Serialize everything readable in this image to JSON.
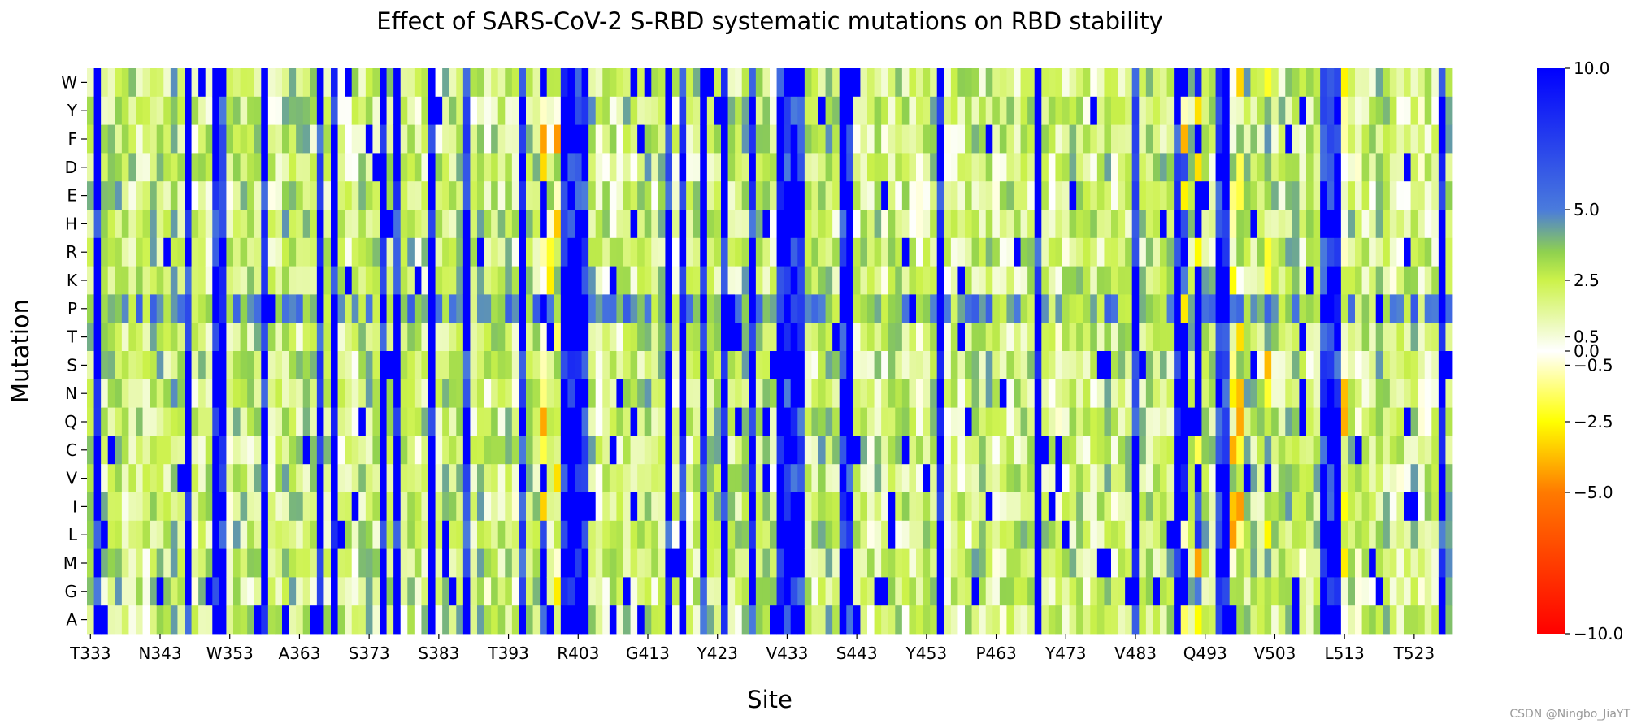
{
  "chart_data": {
    "type": "heatmap",
    "title": "Effect of SARS-CoV-2 S-RBD systematic mutations on RBD stability",
    "xlabel": "Site",
    "ylabel": "Mutation",
    "site_start": 333,
    "site_end": 528,
    "x_tick_labels": [
      "T333",
      "N343",
      "W353",
      "A363",
      "S373",
      "S383",
      "T393",
      "R403",
      "G413",
      "Y423",
      "V433",
      "S443",
      "Y453",
      "P463",
      "Y473",
      "V483",
      "Q493",
      "V503",
      "L513",
      "T523"
    ],
    "rows": [
      "W",
      "Y",
      "F",
      "D",
      "E",
      "H",
      "R",
      "K",
      "P",
      "T",
      "S",
      "N",
      "Q",
      "C",
      "V",
      "I",
      "L",
      "M",
      "G",
      "A"
    ],
    "colorbar": {
      "vmin": -10.0,
      "vmax": 10.0,
      "tick_values": [
        10.0,
        5.0,
        2.5,
        0.5,
        0.0,
        -0.5,
        -2.5,
        -5.0,
        -10.0
      ],
      "tick_labels": [
        "10.0",
        "5.0",
        "2.5",
        "0.5",
        "0.0",
        "−0.5",
        "−2.5",
        "−5.0",
        "−10.0"
      ],
      "stops": [
        {
          "value": -10.0,
          "color": "#ff0000"
        },
        {
          "value": -5.0,
          "color": "#ff7a00"
        },
        {
          "value": -2.5,
          "color": "#ffff00"
        },
        {
          "value": 0.0,
          "color": "#ffffff"
        },
        {
          "value": 2.5,
          "color": "#ccf24a"
        },
        {
          "value": 3.5,
          "color": "#8fd14f"
        },
        {
          "value": 5.0,
          "color": "#4a7bdc"
        },
        {
          "value": 10.0,
          "color": "#0000ff"
        }
      ]
    },
    "strong_sites": [
      334,
      347,
      351,
      352,
      358,
      366,
      368,
      375,
      377,
      382,
      387,
      395,
      398,
      401,
      402,
      403,
      404,
      416,
      418,
      421,
      424,
      428,
      432,
      433,
      434,
      435,
      441,
      442,
      455,
      469,
      483,
      489,
      490,
      492,
      495,
      496,
      510,
      511,
      512,
      527
    ],
    "negative_sites": [
      398,
      399,
      400,
      490,
      492,
      497,
      498,
      502,
      513
    ],
    "watermark": "CSDN @Ningbo_JiaYT"
  }
}
